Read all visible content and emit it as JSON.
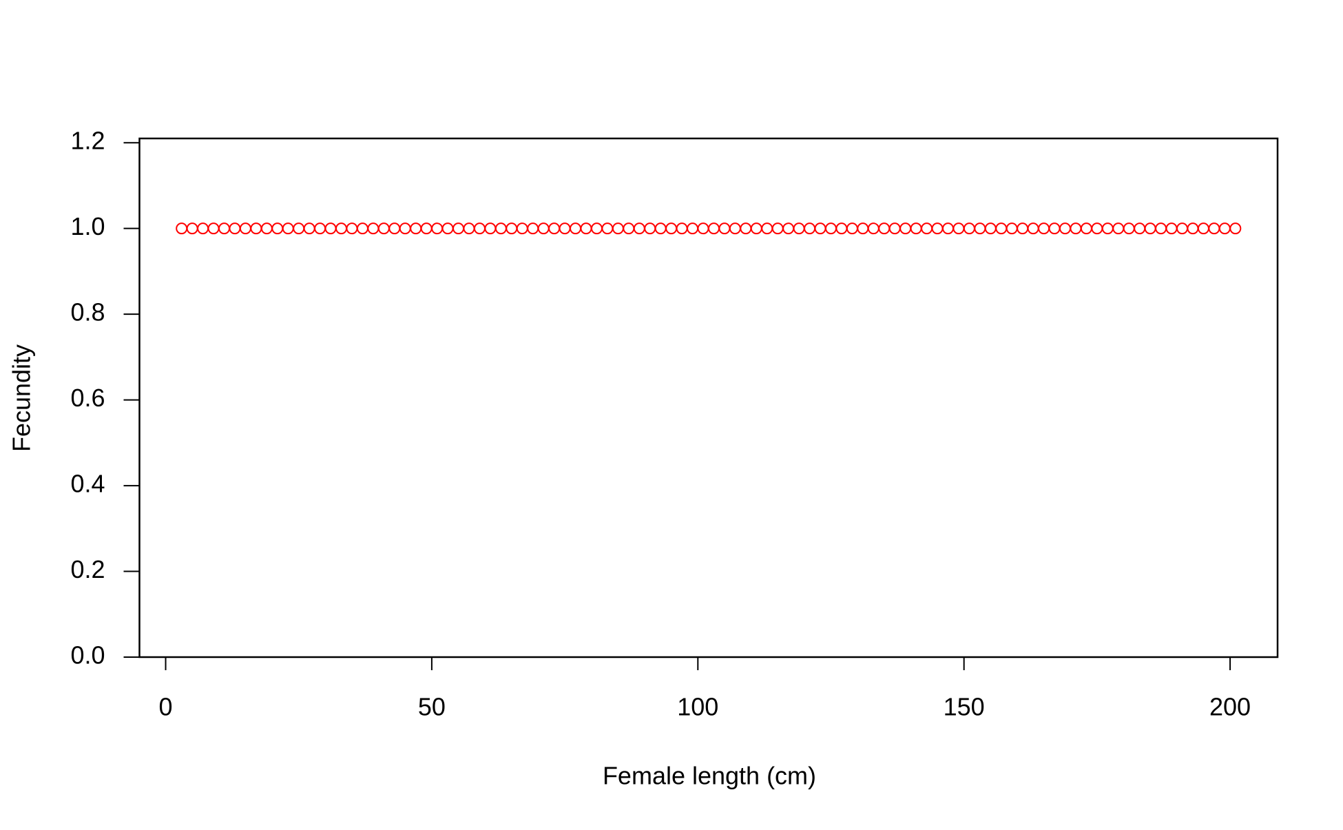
{
  "chart_data": {
    "type": "scatter",
    "xlabel": "Female length (cm)",
    "ylabel": "Fecundity",
    "series": [
      {
        "color": "#ff0000",
        "x": [
          3,
          5,
          7,
          9,
          11,
          13,
          15,
          17,
          19,
          21,
          23,
          25,
          27,
          29,
          31,
          33,
          35,
          37,
          39,
          41,
          43,
          45,
          47,
          49,
          51,
          53,
          55,
          57,
          59,
          61,
          63,
          65,
          67,
          69,
          71,
          73,
          75,
          77,
          79,
          81,
          83,
          85,
          87,
          89,
          91,
          93,
          95,
          97,
          99,
          101,
          103,
          105,
          107,
          109,
          111,
          113,
          115,
          117,
          119,
          121,
          123,
          125,
          127,
          129,
          131,
          133,
          135,
          137,
          139,
          141,
          143,
          145,
          147,
          149,
          151,
          153,
          155,
          157,
          159,
          161,
          163,
          165,
          167,
          169,
          171,
          173,
          175,
          177,
          179,
          181,
          183,
          185,
          187,
          189,
          191,
          193,
          195,
          197,
          199,
          201
        ],
        "values": [
          1,
          1,
          1,
          1,
          1,
          1,
          1,
          1,
          1,
          1,
          1,
          1,
          1,
          1,
          1,
          1,
          1,
          1,
          1,
          1,
          1,
          1,
          1,
          1,
          1,
          1,
          1,
          1,
          1,
          1,
          1,
          1,
          1,
          1,
          1,
          1,
          1,
          1,
          1,
          1,
          1,
          1,
          1,
          1,
          1,
          1,
          1,
          1,
          1,
          1,
          1,
          1,
          1,
          1,
          1,
          1,
          1,
          1,
          1,
          1,
          1,
          1,
          1,
          1,
          1,
          1,
          1,
          1,
          1,
          1,
          1,
          1,
          1,
          1,
          1,
          1,
          1,
          1,
          1,
          1,
          1,
          1,
          1,
          1,
          1,
          1,
          1,
          1,
          1,
          1,
          1,
          1,
          1,
          1,
          1,
          1,
          1,
          1,
          1,
          1
        ]
      }
    ],
    "xlim": [
      -4.92,
      208.92
    ],
    "xticks": [
      0,
      50,
      100,
      150,
      200
    ],
    "ylim": [
      0,
      1.21
    ],
    "yticks": [
      {
        "value": 0,
        "label": "0.0"
      },
      {
        "value": 0.2,
        "label": "0.2"
      },
      {
        "value": 0.4,
        "label": "0.4"
      },
      {
        "value": 0.6,
        "label": "0.6"
      },
      {
        "value": 0.8,
        "label": "0.8"
      },
      {
        "value": 1,
        "label": "1.0"
      },
      {
        "value": 1.2,
        "label": "1.2"
      }
    ]
  }
}
